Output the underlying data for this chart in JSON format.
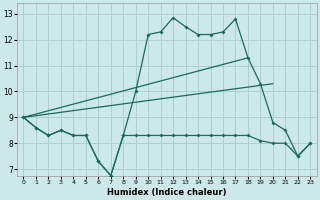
{
  "xlabel": "Humidex (Indice chaleur)",
  "bg_color": "#cde8e8",
  "grid_color": "#aad0d0",
  "line_color": "#1a6b5a",
  "xlim": [
    -0.5,
    23.5
  ],
  "ylim": [
    6.75,
    13.4
  ],
  "xticks": [
    0,
    1,
    2,
    3,
    4,
    5,
    6,
    7,
    8,
    9,
    10,
    11,
    12,
    13,
    14,
    15,
    16,
    17,
    18,
    19,
    20,
    21,
    22,
    23
  ],
  "yticks": [
    7,
    8,
    9,
    10,
    11,
    12,
    13
  ],
  "line1_x": [
    0,
    1,
    2,
    3,
    4,
    5,
    6,
    7,
    8,
    9,
    10,
    11,
    12,
    13,
    14,
    15,
    16,
    17,
    18,
    19,
    20,
    21,
    22,
    23
  ],
  "line1_y": [
    9.0,
    8.6,
    8.3,
    8.5,
    8.3,
    8.3,
    7.3,
    6.75,
    8.3,
    8.3,
    8.3,
    8.3,
    8.3,
    8.3,
    8.3,
    8.3,
    8.3,
    8.3,
    8.3,
    8.1,
    8.0,
    8.0,
    7.5,
    8.0
  ],
  "line2_x": [
    0,
    1,
    2,
    3,
    4,
    5,
    6,
    7,
    8,
    9,
    10,
    11,
    12,
    13,
    14,
    15,
    16,
    17,
    18,
    19,
    20,
    21,
    22,
    23
  ],
  "line2_y": [
    9.0,
    8.6,
    8.3,
    8.5,
    8.3,
    8.3,
    7.3,
    6.75,
    8.3,
    10.0,
    12.2,
    12.3,
    12.85,
    12.5,
    12.2,
    12.2,
    12.3,
    12.8,
    11.3,
    10.3,
    8.8,
    8.5,
    7.5,
    8.0
  ],
  "line3_x": [
    0,
    20
  ],
  "line3_y": [
    9.0,
    10.3
  ],
  "line4_x": [
    0,
    18
  ],
  "line4_y": [
    9.0,
    11.3
  ]
}
